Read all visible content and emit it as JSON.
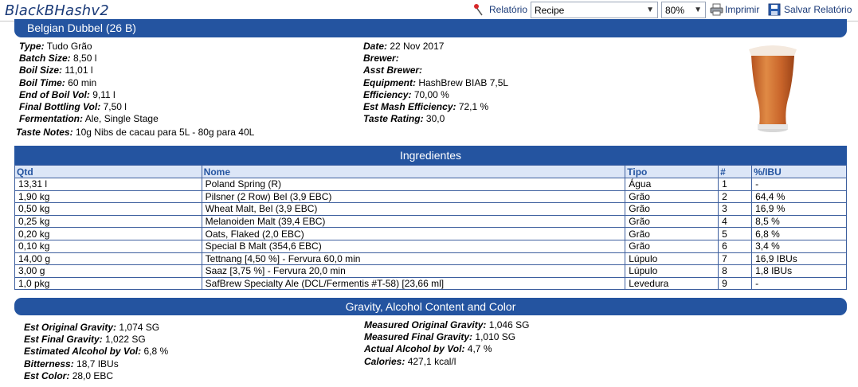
{
  "window": {
    "title": "BlackBHashv2"
  },
  "toolbar": {
    "report_label": "Relatório",
    "recipe_select": "Recipe",
    "zoom_select": "80%",
    "print_label": "Imprimir",
    "save_label": "Salvar Relatório"
  },
  "recipe": {
    "header": "Belgian Dubbel (26 B)",
    "left_fields": [
      {
        "label": "Type:",
        "value": "Tudo Grão"
      },
      {
        "label": "Batch Size:",
        "value": "8,50 l"
      },
      {
        "label": "Boil Size:",
        "value": "11,01 l"
      },
      {
        "label": "Boil Time:",
        "value": "60 min"
      },
      {
        "label": "End of Boil Vol:",
        "value": "9,11 l"
      },
      {
        "label": "Final Bottling Vol:",
        "value": "7,50 l"
      },
      {
        "label": "Fermentation:",
        "value": "Ale, Single Stage"
      }
    ],
    "right_fields": [
      {
        "label": "Date:",
        "value": "22 Nov 2017"
      },
      {
        "label": "Brewer:",
        "value": ""
      },
      {
        "label": "Asst Brewer:",
        "value": ""
      },
      {
        "label": "Equipment:",
        "value": "HashBrew BIAB 7,5L"
      },
      {
        "label": "Efficiency:",
        "value": "70,00 %"
      },
      {
        "label": "Est Mash Efficiency:",
        "value": "72,1 %"
      },
      {
        "label": "Taste Rating:",
        "value": "30,0"
      }
    ],
    "taste_label": "Taste Notes:",
    "taste_value": "10g Nibs de cacau para 5L - 80g para 40L",
    "beer_color": "#c8642a"
  },
  "ingredients": {
    "title": "Ingredientes",
    "columns": [
      "Qtd",
      "Nome",
      "Tipo",
      "#",
      "%/IBU"
    ],
    "rows": [
      [
        "13,31 l",
        "Poland Spring (R)",
        "Água",
        "1",
        "-"
      ],
      [
        "1,90 kg",
        "Pilsner (2 Row) Bel (3,9 EBC)",
        "Grão",
        "2",
        "64,4 %"
      ],
      [
        "0,50 kg",
        "Wheat Malt, Bel (3,9 EBC)",
        "Grão",
        "3",
        "16,9 %"
      ],
      [
        "0,25 kg",
        "Melanoiden Malt (39,4 EBC)",
        "Grão",
        "4",
        "8,5 %"
      ],
      [
        "0,20 kg",
        "Oats, Flaked (2,0 EBC)",
        "Grão",
        "5",
        "6,8 %"
      ],
      [
        "0,10 kg",
        "Special B Malt (354,6 EBC)",
        "Grão",
        "6",
        "3,4 %"
      ],
      [
        "14,00 g",
        "Tettnang [4,50 %] - Fervura 60,0 min",
        "Lúpulo",
        "7",
        "16,9 IBUs"
      ],
      [
        "3,00 g",
        "Saaz [3,75 %] - Fervura 20,0 min",
        "Lúpulo",
        "8",
        "1,8 IBUs"
      ],
      [
        "1,0 pkg",
        "SafBrew Specialty Ale (DCL/Fermentis #T-58) [23,66 ml]",
        "Levedura",
        "9",
        "-"
      ]
    ]
  },
  "gravity": {
    "title": "Gravity, Alcohol Content and Color",
    "left_fields": [
      {
        "label": "Est Original Gravity:",
        "value": "1,074 SG"
      },
      {
        "label": "Est Final Gravity:",
        "value": "1,022 SG"
      },
      {
        "label": "Estimated Alcohol by Vol:",
        "value": "6,8 %"
      },
      {
        "label": "Bitterness:",
        "value": "18,7 IBUs"
      },
      {
        "label": "Est Color:",
        "value": "28,0 EBC"
      }
    ],
    "right_fields": [
      {
        "label": "Measured Original Gravity:",
        "value": "1,046 SG"
      },
      {
        "label": "Measured Final Gravity:",
        "value": "1,010 SG"
      },
      {
        "label": "Actual Alcohol by Vol:",
        "value": "4,7 %"
      },
      {
        "label": "Calories:",
        "value": "427,1 kcal/l"
      }
    ]
  },
  "colors": {
    "header_blue": "#2454a0",
    "table_header_bg": "#dce6f7"
  }
}
